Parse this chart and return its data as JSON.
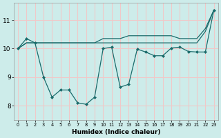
{
  "xlabel": "Humidex (Indice chaleur)",
  "background_color": "#cdecea",
  "line_color": "#1a6b6b",
  "grid_color": "#f0c8c8",
  "xlim": [
    -0.5,
    23.5
  ],
  "ylim": [
    7.5,
    11.6
  ],
  "yticks": [
    8,
    9,
    10,
    11
  ],
  "xticks": [
    0,
    1,
    2,
    3,
    4,
    5,
    6,
    7,
    8,
    9,
    10,
    11,
    12,
    13,
    14,
    15,
    16,
    17,
    18,
    19,
    20,
    21,
    22,
    23
  ],
  "series": [
    {
      "x": [
        0,
        1,
        2,
        3,
        4,
        5,
        6,
        7,
        8,
        9,
        10,
        11,
        12,
        13,
        14,
        15,
        16,
        17,
        18,
        19,
        20,
        21,
        22,
        23
      ],
      "y": [
        10.0,
        10.35,
        10.2,
        9.0,
        8.3,
        8.55,
        8.55,
        8.1,
        8.05,
        8.3,
        10.0,
        10.05,
        8.65,
        8.75,
        9.98,
        9.88,
        9.75,
        9.75,
        10.02,
        10.05,
        9.9,
        9.88,
        9.88,
        11.35
      ],
      "marker": "D",
      "markersize": 2.0,
      "linewidth": 0.9
    },
    {
      "x": [
        0,
        1,
        2,
        3,
        4,
        5,
        6,
        7,
        8,
        9,
        10,
        11,
        12,
        13,
        14,
        15,
        16,
        17,
        18,
        19,
        20,
        21,
        22,
        23
      ],
      "y": [
        10.0,
        10.2,
        10.2,
        10.2,
        10.2,
        10.2,
        10.2,
        10.2,
        10.2,
        10.2,
        10.2,
        10.2,
        10.2,
        10.2,
        10.2,
        10.2,
        10.2,
        10.2,
        10.2,
        10.2,
        10.2,
        10.2,
        10.6,
        11.35
      ],
      "marker": null,
      "markersize": 0,
      "linewidth": 0.9
    },
    {
      "x": [
        0,
        1,
        2,
        3,
        4,
        5,
        6,
        7,
        8,
        9,
        10,
        11,
        12,
        13,
        14,
        15,
        16,
        17,
        18,
        19,
        20,
        21,
        22,
        23
      ],
      "y": [
        10.0,
        10.2,
        10.2,
        10.2,
        10.2,
        10.2,
        10.2,
        10.2,
        10.2,
        10.2,
        10.35,
        10.35,
        10.35,
        10.45,
        10.45,
        10.45,
        10.45,
        10.45,
        10.45,
        10.35,
        10.35,
        10.35,
        10.7,
        11.35
      ],
      "marker": null,
      "markersize": 0,
      "linewidth": 0.9
    }
  ]
}
